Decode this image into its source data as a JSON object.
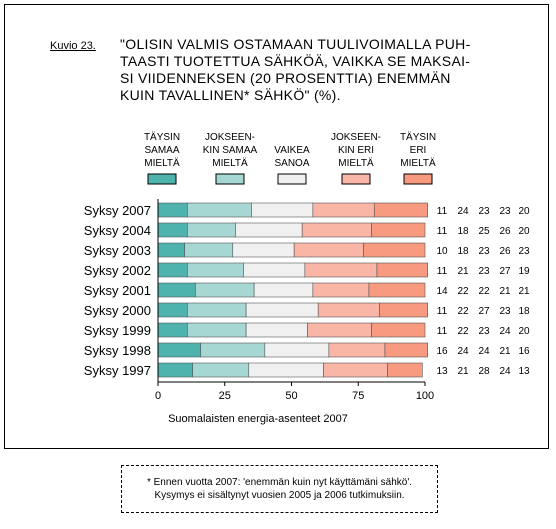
{
  "figure": {
    "label": "Kuvio 23.",
    "title": "\"OLISIN VALMIS OSTAMAAN TUULIVOIMALLA PUH-\nTAASTI TUOTETTUA SÄHKÖÄ, VAIKKA SE MAKSAI-\nSI VIIDENNEKSEN (20 PROSENTTIA) ENEMMÄN\nKUIN TAVALLINEN* SÄHKÖ\" (%)."
  },
  "chart_data": {
    "type": "bar",
    "orientation": "horizontal",
    "stacked": true,
    "categories": [
      "Syksy 2007",
      "Syksy 2004",
      "Syksy 2003",
      "Syksy 2002",
      "Syksy 2001",
      "Syksy 2000",
      "Syksy 1999",
      "Syksy 1998",
      "Syksy 1997"
    ],
    "series": [
      {
        "name": "TÄYSIN SAMAA MIELTÄ",
        "legend_lines": [
          "TÄYSIN",
          "SAMAA",
          "MIELTÄ"
        ],
        "color": "#4fb3ad",
        "values": [
          11,
          11,
          10,
          11,
          14,
          11,
          11,
          16,
          13
        ]
      },
      {
        "name": "JOKSEEN-KIN SAMAA MIELTÄ",
        "legend_lines": [
          "JOKSEEN-",
          "KIN SAMAA",
          "MIELTÄ"
        ],
        "color": "#a6d7d3",
        "values": [
          24,
          18,
          18,
          21,
          22,
          22,
          22,
          24,
          21
        ]
      },
      {
        "name": "VAIKEA SANOA",
        "legend_lines": [
          "VAIKEA",
          "SANOA"
        ],
        "color": "#f0f0f0",
        "values": [
          23,
          25,
          23,
          23,
          22,
          27,
          23,
          24,
          28
        ]
      },
      {
        "name": "JOKSEEN-KIN ERI MIELTÄ",
        "legend_lines": [
          "JOKSEEN-",
          "KIN ERI",
          "MIELTÄ"
        ],
        "color": "#f9b5a6",
        "values": [
          23,
          26,
          26,
          27,
          21,
          23,
          24,
          21,
          24
        ]
      },
      {
        "name": "TÄYSIN ERI MIELTÄ",
        "legend_lines": [
          "TÄYSIN",
          "ERI",
          "MIELTÄ"
        ],
        "color": "#f79a80",
        "values": [
          20,
          20,
          23,
          19,
          21,
          18,
          20,
          16,
          13
        ]
      }
    ],
    "xlim": [
      0,
      100
    ],
    "xticks": [
      0,
      25,
      50,
      75,
      100
    ],
    "xlabel": "Suomalaisten energia-asenteet 2007",
    "value_labels": "right",
    "legend_position": "top",
    "grid": false
  },
  "footnote": {
    "lines": [
      "* Ennen vuotta 2007: 'enemmän kuin nyt käyttämäni sähkö'.",
      "Kysymys ei sisältynyt vuosien 2005 ja 2006 tutkimuksiin."
    ]
  }
}
